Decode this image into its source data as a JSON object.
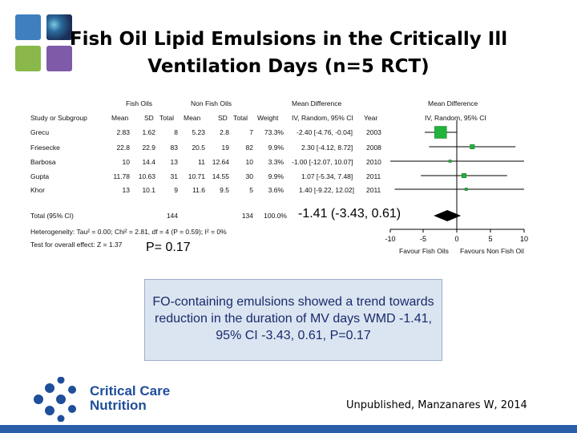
{
  "title_line1": "Fish Oil Lipid Emulsions in the Critically Ill",
  "title_line2": "Ventilation Days (n=5 RCT)",
  "headers": {
    "fish_oils": "Fish Oils",
    "non_fish_oils": "Non Fish Oils",
    "mean_diff": "Mean Difference",
    "mean_diff_plot": "Mean Difference",
    "study": "Study or Subgroup",
    "mean1": "Mean",
    "sd1": "SD",
    "total1": "Total",
    "mean2": "Mean",
    "sd2": "SD",
    "total2": "Total",
    "weight": "Weight",
    "ci_col": "IV, Random, 95% CI",
    "year_col": "Year",
    "ci_plot": "IV, Random, 95% CI"
  },
  "studies": [
    {
      "name": "Grecu",
      "mean1": "2.83",
      "sd1": "1.62",
      "total1": "8",
      "mean2": "5.23",
      "sd2": "2.8",
      "total2": "7",
      "weight": "73.3%",
      "ci": "-2.40 [-4.76, -0.04]",
      "year": "2003",
      "md": -2.4,
      "low": -4.76,
      "high": -0.04,
      "w": 73.3
    },
    {
      "name": "Friesecke",
      "mean1": "22.8",
      "sd1": "22.9",
      "total1": "83",
      "mean2": "20.5",
      "sd2": "19",
      "total2": "82",
      "weight": "9.9%",
      "ci": "2.30 [-4.12, 8.72]",
      "year": "2008",
      "md": 2.3,
      "low": -4.12,
      "high": 8.72,
      "w": 9.9
    },
    {
      "name": "Barbosa",
      "mean1": "10",
      "sd1": "14.4",
      "total1": "13",
      "mean2": "11",
      "sd2": "12.64",
      "total2": "10",
      "weight": "3.3%",
      "ci": "-1.00 [-12.07, 10.07]",
      "year": "2010",
      "md": -1.0,
      "low": -12.07,
      "high": 10.07,
      "w": 3.3
    },
    {
      "name": "Gupta",
      "mean1": "11.78",
      "sd1": "10.63",
      "total1": "31",
      "mean2": "10.71",
      "sd2": "14.55",
      "total2": "30",
      "weight": "9.9%",
      "ci": "1.07 [-5.34, 7.48]",
      "year": "2011",
      "md": 1.07,
      "low": -5.34,
      "high": 7.48,
      "w": 9.9
    },
    {
      "name": "Khor",
      "mean1": "13",
      "sd1": "10.1",
      "total1": "9",
      "mean2": "11.6",
      "sd2": "9.5",
      "total2": "5",
      "weight": "3.6%",
      "ci": "1.40 [-9.22, 12.02]",
      "year": "2011",
      "md": 1.4,
      "low": -9.22,
      "high": 12.02,
      "w": 3.6
    }
  ],
  "total": {
    "label": "Total (95% CI)",
    "total1": "144",
    "total2": "134",
    "weight": "100.0%",
    "ci_big": "-1.41 (-3.43, 0.61)",
    "md": -1.41,
    "low": -3.43,
    "high": 0.61
  },
  "heterogeneity": "Heterogeneity: Tau² = 0.00; Chi² = 2.81, df = 4 (P = 0.59); I² = 0%",
  "overall_test": "Test for overall effect: Z = 1.37",
  "p_value": "P= 0.17",
  "axis": {
    "ticks": [
      -10,
      -5,
      0,
      5,
      10
    ],
    "tick_labels": [
      "-10",
      "-5",
      "0",
      "5",
      "10"
    ],
    "left_label": "Favour Fish Oils",
    "right_label": "Favours Non Fish Oil"
  },
  "callout": "FO-containing emulsions showed a trend towards reduction in the duration of MV days WMD -1.41, 95% CI -3.43, 0.61, P=0.17",
  "logo_line1": "Critical Care",
  "logo_line2": "Nutrition",
  "source": "Unpublished, Manzanares W, 2014",
  "colors": {
    "tile_blue": "#3f7fc0",
    "tile_green": "#8ab84a",
    "tile_purple": "#7e5aa8",
    "square": "#22b33a",
    "diamond": "#000000",
    "callout_text": "#1a2a6c",
    "logo_blue": "#1f4e9a"
  }
}
